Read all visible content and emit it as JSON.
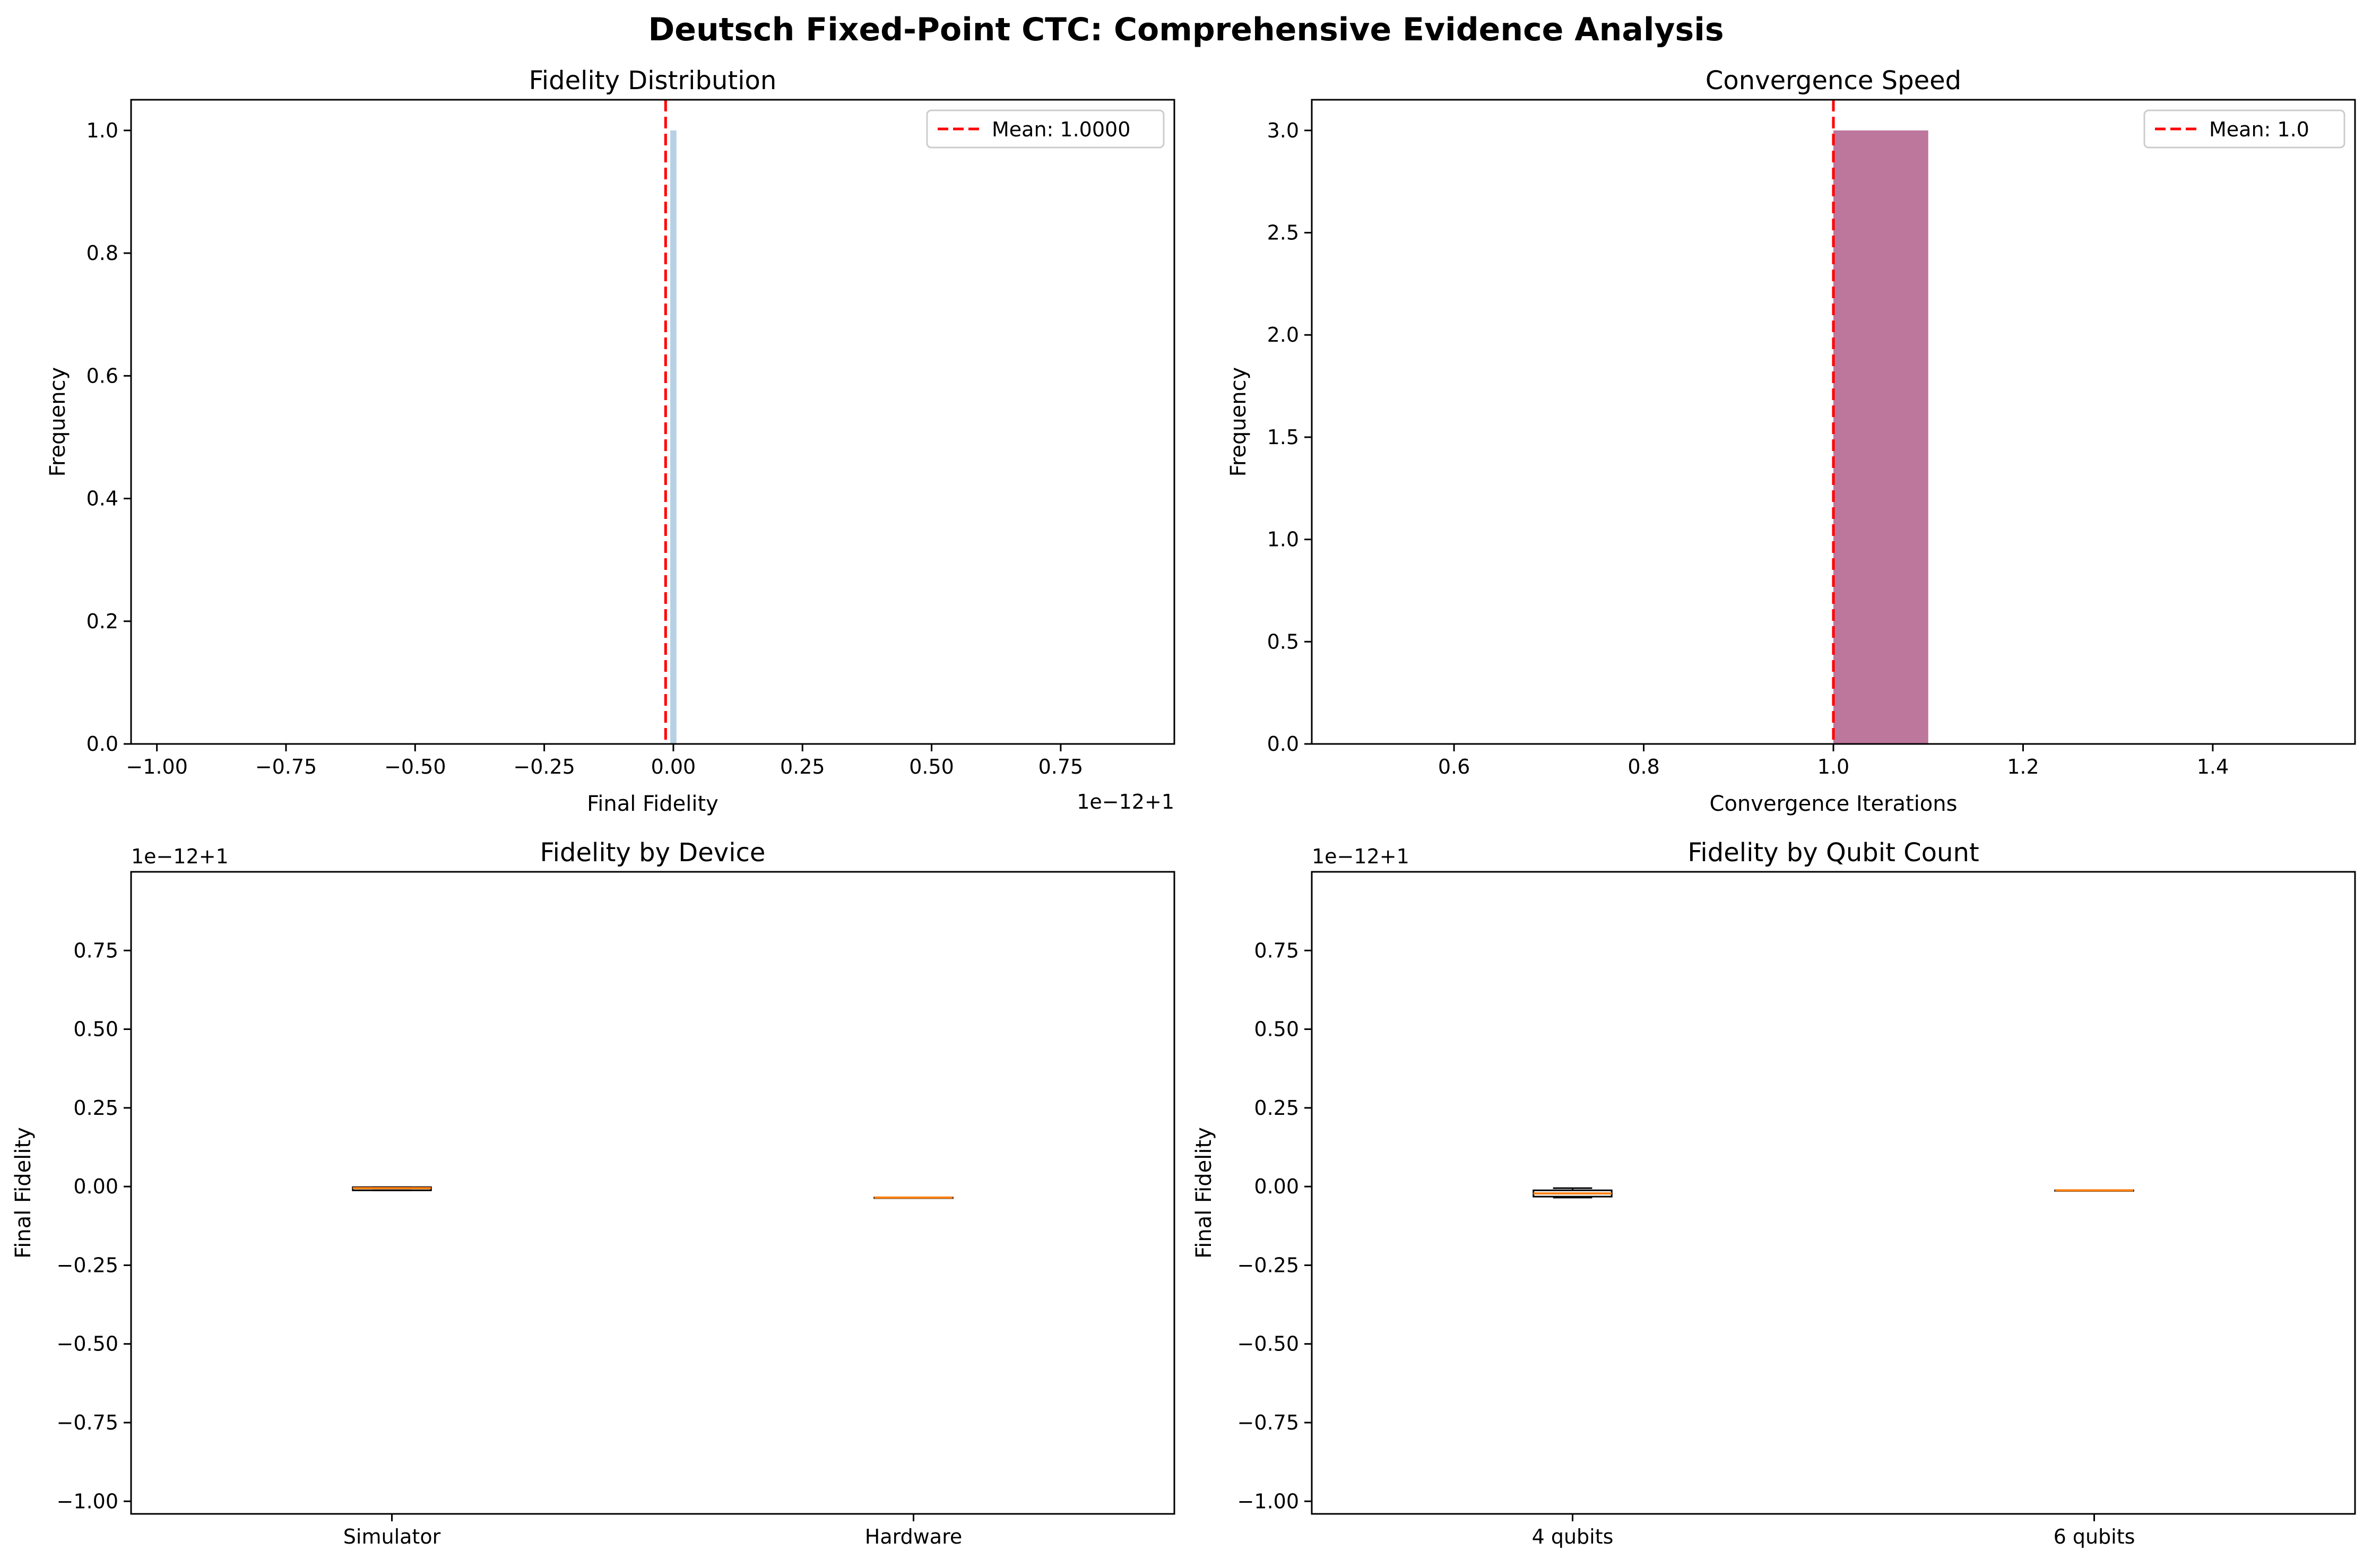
{
  "figure": {
    "title": "Deutsch Fixed-Point CTC: Comprehensive Evidence Analysis"
  },
  "colors": {
    "mean_line": "#ff0000",
    "hist_fidelity": "#b8d0e4",
    "hist_convergence": "#bd769c",
    "median": "#ff7f0e",
    "box_edge": "#000000"
  },
  "chart_data": [
    {
      "id": "fidelity_distribution",
      "type": "bar",
      "title": "Fidelity Distribution",
      "xlabel": "Final Fidelity",
      "ylabel": "Frequency",
      "axis_offset_text": "1e−12+1",
      "xlim": [
        -1.05,
        0.97
      ],
      "ylim": [
        0,
        1.05
      ],
      "xticks": [
        -1.0,
        -0.75,
        -0.5,
        -0.25,
        0.0,
        0.25,
        0.5,
        0.75
      ],
      "xtick_labels": [
        "−1.00",
        "−0.75",
        "−0.50",
        "−0.25",
        "0.00",
        "0.25",
        "0.50",
        "0.75"
      ],
      "yticks": [
        0.0,
        0.2,
        0.4,
        0.6,
        0.8,
        1.0
      ],
      "ytick_labels": [
        "0.0",
        "0.2",
        "0.4",
        "0.6",
        "0.8",
        "1.0"
      ],
      "bars": [
        {
          "x0": -0.006,
          "x1": 0.006,
          "height": 1
        }
      ],
      "mean_x": -0.015,
      "legend": {
        "label": "Mean: 1.0000",
        "position": "upper right"
      },
      "grid": false
    },
    {
      "id": "convergence_speed",
      "type": "bar",
      "title": "Convergence Speed",
      "xlabel": "Convergence Iterations",
      "ylabel": "Frequency",
      "xlim": [
        0.45,
        1.55
      ],
      "ylim": [
        0,
        3.15
      ],
      "xticks": [
        0.6,
        0.8,
        1.0,
        1.2,
        1.4
      ],
      "xtick_labels": [
        "0.6",
        "0.8",
        "1.0",
        "1.2",
        "1.4"
      ],
      "yticks": [
        0.0,
        0.5,
        1.0,
        1.5,
        2.0,
        2.5,
        3.0
      ],
      "ytick_labels": [
        "0.0",
        "0.5",
        "1.0",
        "1.5",
        "2.0",
        "2.5",
        "3.0"
      ],
      "bars": [
        {
          "x0": 1.0,
          "x1": 1.1,
          "height": 3
        }
      ],
      "mean_x": 1.0,
      "legend": {
        "label": "Mean: 1.0",
        "position": "upper right"
      },
      "grid": false
    },
    {
      "id": "fidelity_by_device",
      "type": "box",
      "title": "Fidelity by Device",
      "ylabel": "Final Fidelity",
      "axis_offset_text": "1e−12+1",
      "ylim": [
        -1.04,
        1.0
      ],
      "yticks": [
        -1.0,
        -0.75,
        -0.5,
        -0.25,
        0.0,
        0.25,
        0.5,
        0.75
      ],
      "ytick_labels": [
        "−1.00",
        "−0.75",
        "−0.50",
        "−0.25",
        "0.00",
        "0.25",
        "0.50",
        "0.75"
      ],
      "categories": [
        "Simulator",
        "Hardware"
      ],
      "boxes": [
        {
          "q1": -0.012,
          "median": -0.005,
          "q3": -0.002,
          "whisker_low": -0.012,
          "whisker_high": -0.002
        },
        {
          "q1": -0.035,
          "median": -0.035,
          "q3": -0.035,
          "whisker_low": -0.035,
          "whisker_high": -0.035
        }
      ],
      "grid": false
    },
    {
      "id": "fidelity_by_qubit_count",
      "type": "box",
      "title": "Fidelity by Qubit Count",
      "ylabel": "Final Fidelity",
      "axis_offset_text": "1e−12+1",
      "ylim": [
        -1.04,
        1.0
      ],
      "yticks": [
        -1.0,
        -0.75,
        -0.5,
        -0.25,
        0.0,
        0.25,
        0.5,
        0.75
      ],
      "ytick_labels": [
        "−1.00",
        "−0.75",
        "−0.50",
        "−0.25",
        "0.00",
        "0.25",
        "0.50",
        "0.75"
      ],
      "categories": [
        "4 qubits",
        "6 qubits"
      ],
      "boxes": [
        {
          "q1": -0.032,
          "median": -0.022,
          "q3": -0.012,
          "whisker_low": -0.035,
          "whisker_high": -0.005
        },
        {
          "q1": -0.012,
          "median": -0.012,
          "q3": -0.012,
          "whisker_low": -0.012,
          "whisker_high": -0.012
        }
      ],
      "grid": false
    }
  ]
}
